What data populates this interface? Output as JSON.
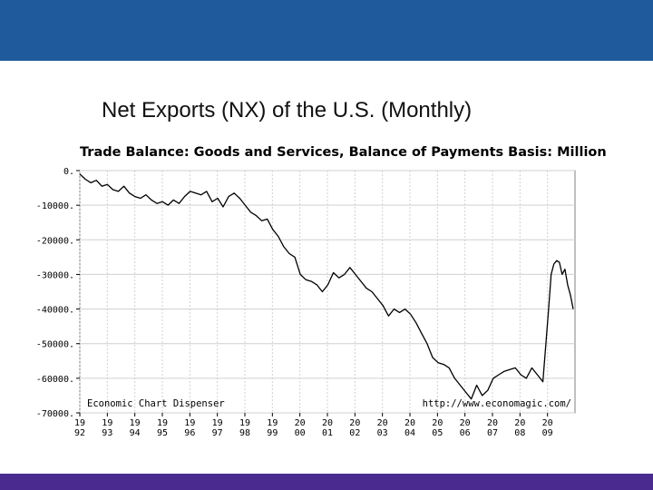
{
  "slide": {
    "title": "Net Exports (NX) of the U.S. (Monthly)",
    "header_color": "#1f5a9c",
    "footer_color": "#4b2a8f"
  },
  "chart_data": {
    "type": "line",
    "title": "Trade Balance: Goods and Services, Balance of Payments Basis: Million",
    "xlabel": "",
    "ylabel": "",
    "ylim": [
      -70000,
      0
    ],
    "xlim": [
      1992.0,
      2010.0
    ],
    "grid": true,
    "yticks": [
      0,
      -10000,
      -20000,
      -30000,
      -40000,
      -50000,
      -60000,
      -70000
    ],
    "ytick_labels": [
      "0.",
      "-10000.",
      "-20000.",
      "-30000.",
      "-40000.",
      "-50000.",
      "-60000.",
      "-70000."
    ],
    "xticks": [
      {
        "top": "19",
        "bottom": "92",
        "year": 1992
      },
      {
        "top": "19",
        "bottom": "93",
        "year": 1993
      },
      {
        "top": "19",
        "bottom": "94",
        "year": 1994
      },
      {
        "top": "19",
        "bottom": "95",
        "year": 1995
      },
      {
        "top": "19",
        "bottom": "96",
        "year": 1996
      },
      {
        "top": "19",
        "bottom": "97",
        "year": 1997
      },
      {
        "top": "19",
        "bottom": "98",
        "year": 1998
      },
      {
        "top": "19",
        "bottom": "99",
        "year": 1999
      },
      {
        "top": "20",
        "bottom": "00",
        "year": 2000
      },
      {
        "top": "20",
        "bottom": "01",
        "year": 2001
      },
      {
        "top": "20",
        "bottom": "02",
        "year": 2002
      },
      {
        "top": "20",
        "bottom": "03",
        "year": 2003
      },
      {
        "top": "20",
        "bottom": "04",
        "year": 2004
      },
      {
        "top": "20",
        "bottom": "05",
        "year": 2005
      },
      {
        "top": "20",
        "bottom": "06",
        "year": 2006
      },
      {
        "top": "20",
        "bottom": "07",
        "year": 2007
      },
      {
        "top": "20",
        "bottom": "08",
        "year": 2008
      },
      {
        "top": "20",
        "bottom": "09",
        "year": 2009
      }
    ],
    "annotations": {
      "left": "Economic Chart Dispenser",
      "right": "http://www.economagic.com/"
    },
    "series": [
      {
        "color": "#000000",
        "x": [
          1992.0,
          1992.2,
          1992.4,
          1992.6,
          1992.8,
          1993.0,
          1993.2,
          1993.4,
          1993.6,
          1993.8,
          1994.0,
          1994.2,
          1994.4,
          1994.6,
          1994.8,
          1995.0,
          1995.2,
          1995.4,
          1995.6,
          1995.8,
          1996.0,
          1996.2,
          1996.4,
          1996.6,
          1996.8,
          1997.0,
          1997.2,
          1997.4,
          1997.6,
          1997.8,
          1998.0,
          1998.2,
          1998.4,
          1998.6,
          1998.8,
          1999.0,
          1999.2,
          1999.4,
          1999.6,
          1999.8,
          2000.0,
          2000.2,
          2000.4,
          2000.6,
          2000.8,
          2001.0,
          2001.2,
          2001.4,
          2001.6,
          2001.8,
          2002.0,
          2002.2,
          2002.4,
          2002.6,
          2002.8,
          2003.0,
          2003.2,
          2003.4,
          2003.6,
          2003.8,
          2004.0,
          2004.2,
          2004.4,
          2004.6,
          2004.8,
          2005.0,
          2005.2,
          2005.4,
          2005.6,
          2005.8,
          2006.0,
          2006.2,
          2006.4,
          2006.6,
          2006.8,
          2007.0,
          2007.2,
          2007.4,
          2007.6,
          2007.8,
          2008.0,
          2008.2,
          2008.4,
          2008.6,
          2008.8,
          2009.0,
          2009.1,
          2009.2,
          2009.3,
          2009.4,
          2009.5,
          2009.6,
          2009.7,
          2009.8,
          2009.9
        ],
        "y": [
          -1000,
          -2500,
          -3500,
          -2800,
          -4500,
          -4000,
          -5500,
          -6000,
          -4500,
          -6500,
          -7500,
          -8000,
          -7000,
          -8500,
          -9500,
          -9000,
          -10000,
          -8500,
          -9500,
          -7500,
          -6000,
          -6500,
          -7000,
          -6000,
          -9000,
          -8000,
          -10500,
          -7500,
          -6500,
          -8000,
          -10000,
          -12000,
          -13000,
          -14500,
          -14000,
          -17000,
          -19000,
          -22000,
          -24000,
          -25000,
          -30000,
          -31500,
          -32000,
          -33000,
          -35000,
          -33000,
          -29500,
          -31000,
          -30000,
          -28000,
          -30000,
          -32000,
          -34000,
          -35000,
          -37000,
          -39000,
          -42000,
          -40000,
          -41000,
          -40000,
          -41500,
          -44000,
          -47000,
          -50000,
          -54000,
          -55500,
          -56000,
          -57000,
          -60000,
          -62000,
          -64000,
          -66000,
          -62000,
          -65000,
          -63500,
          -60000,
          -59000,
          -58000,
          -57500,
          -57000,
          -59000,
          -60000,
          -57000,
          -59000,
          -61000,
          -41000,
          -30000,
          -27000,
          -26000,
          -26500,
          -30000,
          -28500,
          -33000,
          -36000,
          -40000
        ]
      }
    ]
  }
}
